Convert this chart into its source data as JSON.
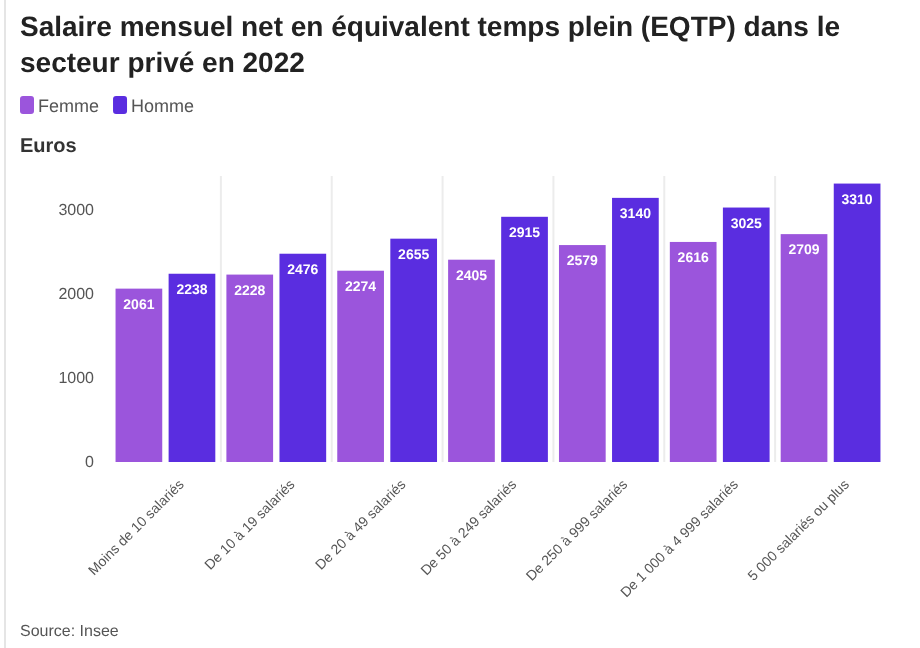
{
  "chart_data": {
    "type": "bar",
    "title": "Salaire mensuel net en équivalent temps plein (EQTP) dans le secteur privé en 2022",
    "ylabel": "Euros",
    "categories": [
      "Moins de 10 salariés",
      "De 10 à 19 salariés",
      "De 20 à 49 salariés",
      "De 50 à 249 salariés",
      "De 250 à 999 salariés",
      "De 1 000 à 4 999 salariés",
      "5 000 salariés ou plus"
    ],
    "series": [
      {
        "name": "Femme",
        "color": "#9b55dc",
        "values": [
          2061,
          2228,
          2274,
          2405,
          2579,
          2616,
          2709
        ]
      },
      {
        "name": "Homme",
        "color": "#5a2de0",
        "values": [
          2238,
          2476,
          2655,
          2915,
          3140,
          3025,
          3310
        ]
      }
    ],
    "ylim": [
      0,
      3400
    ],
    "yticks": [
      0,
      1000,
      2000,
      3000
    ],
    "grid": "x",
    "legend": "top left",
    "data_labels": true,
    "annotations": [
      "Source: Insee"
    ]
  }
}
